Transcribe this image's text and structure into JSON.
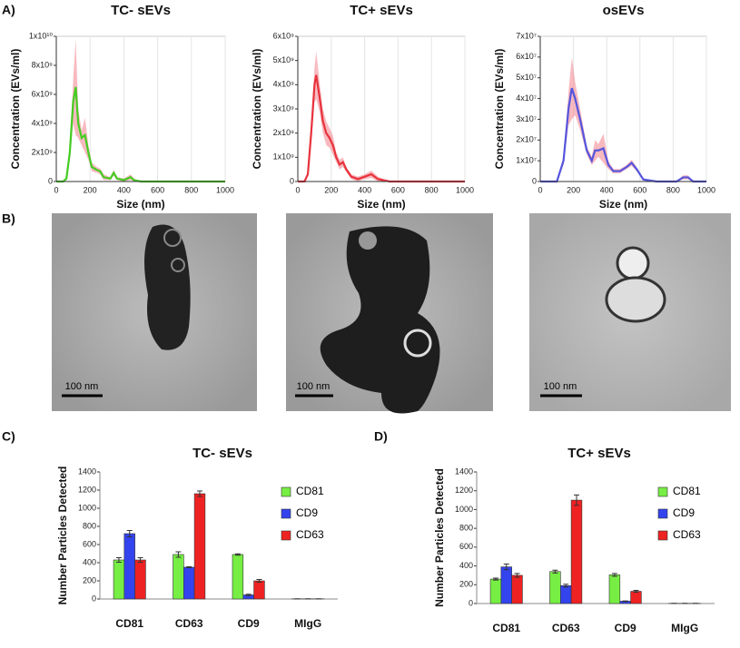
{
  "panel_labels": [
    "A)",
    "B)",
    "C)",
    "D)"
  ],
  "images": [
    {
      "scale_bar": "100 nm"
    },
    {
      "scale_bar": "100 nm"
    },
    {
      "scale_bar": "100 nm"
    }
  ],
  "chart_data": [
    {
      "type": "line",
      "title": "TC- sEVs",
      "x_label": "Size (nm)",
      "y_label": "Concentration (EVs/ml)",
      "color": "#44cc22",
      "band_color": "#f4a0a8",
      "x": [
        0,
        40,
        60,
        80,
        100,
        115,
        130,
        150,
        170,
        190,
        210,
        240,
        260,
        280,
        320,
        340,
        360,
        400,
        440,
        460,
        500,
        600,
        800,
        1000
      ],
      "values": [
        0,
        0,
        200000000,
        2000000000,
        5500000000,
        6500000000,
        4000000000,
        3000000000,
        3200000000,
        2000000000,
        1000000000,
        800000000,
        700000000,
        300000000,
        200000000,
        600000000,
        200000000,
        100000000,
        300000000,
        100000000,
        0,
        0,
        0,
        0
      ],
      "error": [
        0,
        0,
        100000000,
        500000000,
        1500000000,
        3300000000,
        1000000000,
        500000000,
        1200000000,
        500000000,
        300000000,
        200000000,
        200000000,
        200000000,
        100000000,
        200000000,
        100000000,
        100000000,
        200000000,
        100000000,
        0,
        0,
        0,
        0
      ],
      "xlim": [
        0,
        1000
      ],
      "xticks": [
        0,
        200,
        400,
        600,
        800,
        1000
      ],
      "ylim": [
        0,
        10000000000
      ],
      "yticks": [
        {
          "value": 0,
          "label": "0"
        },
        {
          "value": 2000000000,
          "label": "2x10⁹"
        },
        {
          "value": 4000000000,
          "label": "4x10⁹"
        },
        {
          "value": 6000000000,
          "label": "6x10⁹"
        },
        {
          "value": 8000000000,
          "label": "8x10⁹"
        },
        {
          "value": 10000000000,
          "label": "1x10¹⁰"
        }
      ]
    },
    {
      "type": "line",
      "title": "TC+ sEVs",
      "x_label": "Size (nm)",
      "y_label": "Concentration (EVs/ml)",
      "color": "#e8323c",
      "band_color": "#f4a0a8",
      "x": [
        0,
        40,
        60,
        80,
        100,
        110,
        130,
        150,
        170,
        190,
        210,
        230,
        250,
        270,
        290,
        320,
        360,
        400,
        440,
        480,
        550,
        700,
        1000
      ],
      "values": [
        0,
        0,
        300000000,
        2000000000,
        4000000000,
        4400000000,
        3500000000,
        2500000000,
        2000000000,
        1800000000,
        1500000000,
        1000000000,
        700000000,
        800000000,
        500000000,
        200000000,
        100000000,
        200000000,
        300000000,
        100000000,
        0,
        0,
        0
      ],
      "error": [
        0,
        0,
        100000000,
        400000000,
        700000000,
        1000000000,
        600000000,
        500000000,
        500000000,
        400000000,
        400000000,
        200000000,
        200000000,
        200000000,
        100000000,
        100000000,
        100000000,
        100000000,
        150000000,
        100000000,
        0,
        0,
        0
      ],
      "xlim": [
        0,
        1000
      ],
      "xticks": [
        0,
        200,
        400,
        600,
        800,
        1000
      ],
      "ylim": [
        0,
        6000000000
      ],
      "yticks": [
        {
          "value": 0,
          "label": "0"
        },
        {
          "value": 1000000000,
          "label": "1x10⁹"
        },
        {
          "value": 2000000000,
          "label": "2x10⁹"
        },
        {
          "value": 3000000000,
          "label": "3x10⁹"
        },
        {
          "value": 4000000000,
          "label": "4x10⁹"
        },
        {
          "value": 5000000000,
          "label": "5x10⁹"
        },
        {
          "value": 6000000000,
          "label": "6x10⁹"
        }
      ]
    },
    {
      "type": "line",
      "title": "osEVs",
      "x_label": "Size (nm)",
      "y_label": "Concentration (EVs/ml)",
      "color": "#5555dd",
      "band_color": "#f4a0a8",
      "x": [
        0,
        100,
        140,
        170,
        190,
        210,
        240,
        280,
        310,
        330,
        350,
        380,
        410,
        440,
        480,
        520,
        550,
        580,
        620,
        700,
        820,
        860,
        890,
        920,
        1000
      ],
      "values": [
        0,
        0,
        10000000,
        35000000,
        45000000,
        40000000,
        30000000,
        15000000,
        10000000,
        15000000,
        15000000,
        16000000,
        8000000,
        5000000,
        5000000,
        7000000,
        9000000,
        6000000,
        1000000,
        0,
        0,
        2000000,
        2000000,
        0,
        0
      ],
      "error": [
        0,
        0,
        2000000,
        8000000,
        15000000,
        8000000,
        5000000,
        2000000,
        2000000,
        5000000,
        3000000,
        7000000,
        2000000,
        1000000,
        1000000,
        1000000,
        1500000,
        1000000,
        500000,
        0,
        0,
        1000000,
        1000000,
        0,
        0
      ],
      "xlim": [
        0,
        1000
      ],
      "xticks": [
        0,
        200,
        400,
        600,
        800,
        1000
      ],
      "ylim": [
        0,
        70000000
      ],
      "yticks": [
        {
          "value": 0,
          "label": "0"
        },
        {
          "value": 10000000,
          "label": "1x10⁷"
        },
        {
          "value": 20000000,
          "label": "2x10⁷"
        },
        {
          "value": 30000000,
          "label": "3x10⁷"
        },
        {
          "value": 40000000,
          "label": "4x10⁷"
        },
        {
          "value": 50000000,
          "label": "5x10⁷"
        },
        {
          "value": 60000000,
          "label": "6x10⁷"
        },
        {
          "value": 70000000,
          "label": "7x10⁷"
        }
      ]
    },
    {
      "type": "bar",
      "title": "TC- sEVs",
      "y_label": "Number Particles Detected",
      "categories": [
        "CD81",
        "CD63",
        "CD9",
        "MIgG"
      ],
      "series": [
        {
          "name": "CD81",
          "color": "#77ee44",
          "values": [
            430,
            490,
            490,
            2
          ],
          "error": [
            25,
            30,
            8,
            1
          ]
        },
        {
          "name": "CD9",
          "color": "#3344ee",
          "values": [
            720,
            350,
            45,
            2
          ],
          "error": [
            35,
            5,
            8,
            1
          ]
        },
        {
          "name": "CD63",
          "color": "#ee2222",
          "values": [
            430,
            1160,
            200,
            2
          ],
          "error": [
            25,
            30,
            15,
            1
          ]
        }
      ],
      "ylim": [
        0,
        1400
      ],
      "yticks": [
        0,
        200,
        400,
        600,
        800,
        1000,
        1200,
        1400
      ]
    },
    {
      "type": "bar",
      "title": "TC+ sEVs",
      "y_label": "Number Particles Detected",
      "categories": [
        "CD81",
        "CD63",
        "CD9",
        "MIgG"
      ],
      "series": [
        {
          "name": "CD81",
          "color": "#77ee44",
          "values": [
            260,
            340,
            305,
            2
          ],
          "error": [
            10,
            15,
            15,
            1
          ]
        },
        {
          "name": "CD9",
          "color": "#3344ee",
          "values": [
            390,
            190,
            25,
            2
          ],
          "error": [
            30,
            15,
            3,
            1
          ]
        },
        {
          "name": "CD63",
          "color": "#ee2222",
          "values": [
            300,
            1100,
            130,
            2
          ],
          "error": [
            20,
            55,
            10,
            1
          ]
        }
      ],
      "ylim": [
        0,
        1400
      ],
      "yticks": [
        0,
        200,
        400,
        600,
        800,
        1000,
        1200,
        1400
      ]
    }
  ]
}
